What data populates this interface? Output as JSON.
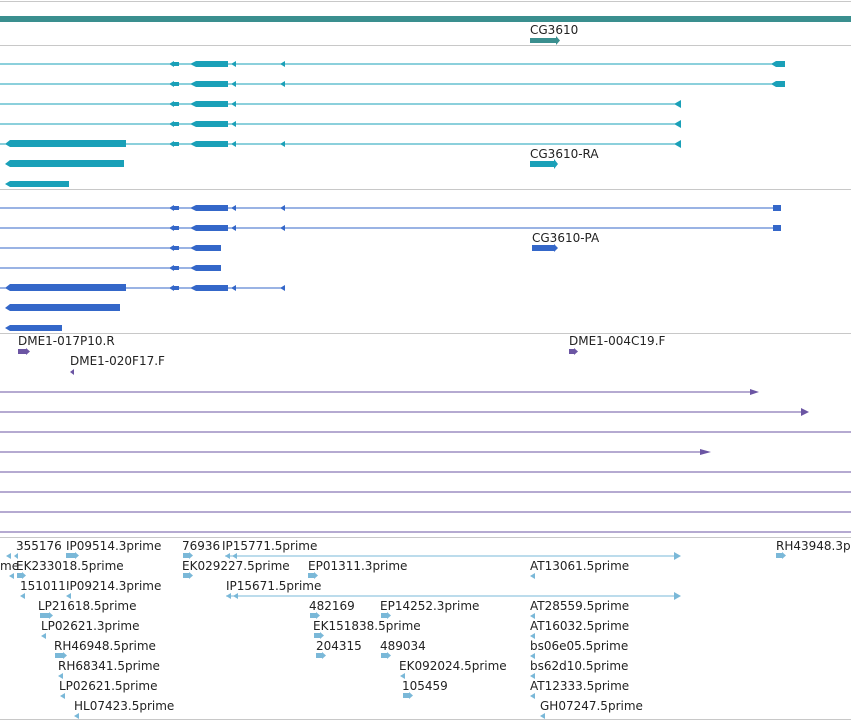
{
  "colors": {
    "gene": "#3a8f8f",
    "transcript": "#1aa0b8",
    "protein": "#3467c9",
    "clone": "#6b55a3",
    "est": "#7ab8d8",
    "separator": "#bfbfbf"
  },
  "gene_track": {
    "label": "CG3610"
  },
  "transcript_track": {
    "label": "CG3610-RA"
  },
  "protein_track": {
    "label": "CG3610-PA"
  },
  "clone_track": {
    "labels": [
      "DME1-017P10.R",
      "DME1-020F17.F",
      "DME1-004C19.F"
    ]
  },
  "est_track": {
    "labels": [
      "355176",
      "IP09514.3prime",
      "76936",
      "IP15771.5prime",
      "RH43948.3p",
      "me",
      "EK233018.5prime",
      "EK029227.5prime",
      "EP01311.3prime",
      "AT13061.5prime",
      "151011",
      "IP09214.3prime",
      "IP15671.5prime",
      "LP21618.5prime",
      "482169",
      "EP14252.3prime",
      "AT28559.5prime",
      "LP02621.3prime",
      "EK151838.5prime",
      "AT16032.5prime",
      "RH46948.5prime",
      "204315",
      "489034",
      "bs06e05.5prime",
      "RH68341.5prime",
      "EK092024.5prime",
      "bs62d10.5prime",
      "LP02621.5prime",
      "105459",
      "AT12333.5prime",
      "HL07423.5prime",
      "GH07247.5prime"
    ]
  }
}
